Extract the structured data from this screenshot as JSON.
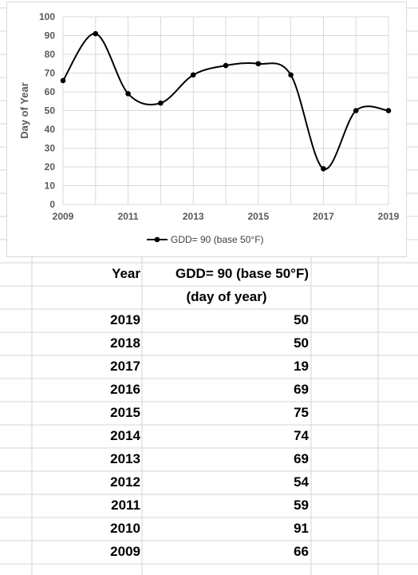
{
  "chart_data": {
    "type": "line",
    "title": "",
    "xlabel": "",
    "ylabel": "Day of Year",
    "x": [
      2009,
      2010,
      2011,
      2012,
      2013,
      2014,
      2015,
      2016,
      2017,
      2018,
      2019
    ],
    "series": [
      {
        "name": "GDD= 90 (base 50°F)",
        "values": [
          66,
          91,
          59,
          54,
          69,
          74,
          75,
          69,
          19,
          50,
          50
        ]
      }
    ],
    "xlim": [
      2009,
      2019
    ],
    "ylim": [
      0,
      100
    ],
    "x_ticks": [
      "2009",
      "2011",
      "2013",
      "2015",
      "2017",
      "2019"
    ],
    "y_ticks": [
      "0",
      "10",
      "20",
      "30",
      "40",
      "50",
      "60",
      "70",
      "80",
      "90",
      "100"
    ],
    "grid": true,
    "legend_position": "bottom",
    "smoothed": true,
    "colors": {
      "line": "#000000",
      "gridline": "#d9d9d9",
      "axis_text": "#595959"
    }
  },
  "table": {
    "header_year": "Year",
    "header_value_line1": "GDD= 90 (base 50°F)",
    "header_value_line2": "(day of year)",
    "rows": [
      {
        "year": "2019",
        "value": "50"
      },
      {
        "year": "2018",
        "value": "50"
      },
      {
        "year": "2017",
        "value": "19"
      },
      {
        "year": "2016",
        "value": "69"
      },
      {
        "year": "2015",
        "value": "75"
      },
      {
        "year": "2014",
        "value": "74"
      },
      {
        "year": "2013",
        "value": "69"
      },
      {
        "year": "2012",
        "value": "54"
      },
      {
        "year": "2011",
        "value": "59"
      },
      {
        "year": "2010",
        "value": "91"
      },
      {
        "year": "2009",
        "value": "66"
      }
    ]
  }
}
